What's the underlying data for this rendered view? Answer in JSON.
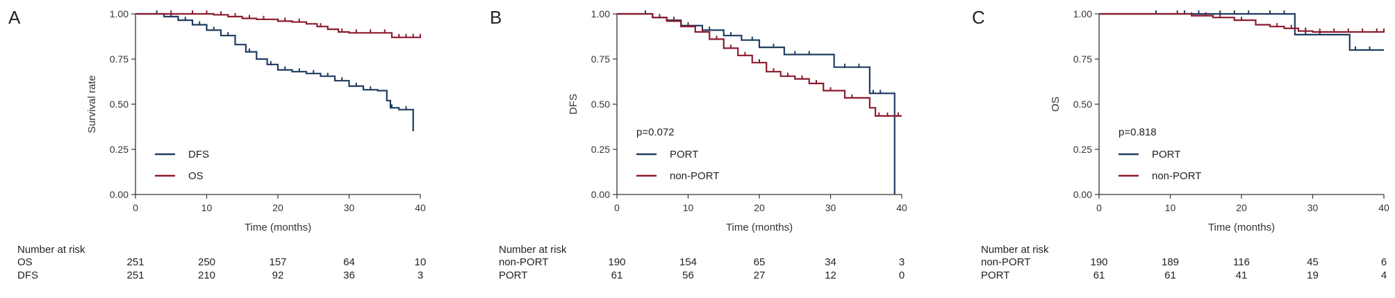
{
  "colors": {
    "blue": "#1f3b5f",
    "red": "#8b1a2e",
    "axis": "#333333"
  },
  "chart_data": [
    {
      "type": "line",
      "subtype": "kaplan-meier",
      "panel_label": "A",
      "xlabel": "Time (months)",
      "ylabel": "Survival rate",
      "xlim": [
        0,
        40
      ],
      "ylim": [
        0,
        1
      ],
      "xticks": [
        "0",
        "10",
        "20",
        "30",
        "40"
      ],
      "yticks": [
        "0.00",
        "0.25",
        "0.50",
        "0.75",
        "1.00"
      ],
      "p_value": "",
      "legend_position": "lower-left",
      "series": [
        {
          "name": "DFS",
          "color": "#1f3b5f",
          "x": [
            0,
            2.5,
            4,
            6,
            8,
            10,
            12,
            14,
            15.5,
            17,
            18.5,
            20,
            22,
            24,
            26,
            28,
            30,
            32,
            34,
            35.3,
            35.8,
            37,
            38.6,
            39
          ],
          "y": [
            1.0,
            1.0,
            0.985,
            0.965,
            0.94,
            0.91,
            0.88,
            0.83,
            0.79,
            0.75,
            0.72,
            0.69,
            0.68,
            0.67,
            0.655,
            0.63,
            0.6,
            0.58,
            0.575,
            0.52,
            0.48,
            0.47,
            0.47,
            0.35
          ],
          "censor": [
            3,
            5,
            7,
            9,
            11,
            13,
            16,
            19,
            21,
            23,
            25,
            27,
            29,
            31,
            33,
            36,
            38
          ]
        },
        {
          "name": "OS",
          "color": "#8b1a2e",
          "x": [
            0,
            9,
            11,
            13,
            15,
            17,
            20,
            22,
            24,
            25.5,
            27,
            28.5,
            30,
            32,
            35.5,
            36,
            40
          ],
          "y": [
            1.0,
            1.0,
            0.995,
            0.985,
            0.975,
            0.97,
            0.96,
            0.955,
            0.945,
            0.93,
            0.915,
            0.9,
            0.895,
            0.895,
            0.895,
            0.87,
            0.87
          ],
          "censor": [
            5,
            8,
            10,
            12,
            14,
            16,
            18,
            21,
            23,
            26,
            29,
            31,
            33,
            35,
            37,
            38,
            39,
            40
          ]
        }
      ],
      "risk_table": {
        "title": "Number at risk",
        "times": [
          "0",
          "10",
          "20",
          "30",
          "40"
        ],
        "rows": [
          {
            "label": "OS",
            "values": [
              "251",
              "250",
              "157",
              "64",
              "10"
            ]
          },
          {
            "label": "DFS",
            "values": [
              "251",
              "210",
              "92",
              "36",
              "3"
            ]
          }
        ]
      }
    },
    {
      "type": "line",
      "subtype": "kaplan-meier",
      "panel_label": "B",
      "xlabel": "Time (months)",
      "ylabel": "DFS",
      "xlim": [
        0,
        40
      ],
      "ylim": [
        0,
        1
      ],
      "xticks": [
        "0",
        "10",
        "20",
        "30",
        "40"
      ],
      "yticks": [
        "0.00",
        "0.25",
        "0.50",
        "0.75",
        "1.00"
      ],
      "p_value": "p=0.072",
      "legend_position": "lower-left",
      "series": [
        {
          "name": "PORT",
          "color": "#1f3b5f",
          "x": [
            0,
            3,
            5,
            7,
            9,
            12,
            15,
            17.5,
            20,
            23.5,
            30.5,
            35.5,
            39
          ],
          "y": [
            1.0,
            1.0,
            0.98,
            0.965,
            0.935,
            0.91,
            0.88,
            0.855,
            0.815,
            0.775,
            0.705,
            0.56,
            0.0
          ],
          "censor": [
            4,
            8,
            10,
            13,
            16,
            19,
            22,
            25,
            27,
            32,
            34,
            36,
            37
          ]
        },
        {
          "name": "non-PORT",
          "color": "#8b1a2e",
          "x": [
            0,
            3,
            5,
            7,
            9,
            11,
            13,
            15,
            17,
            19,
            21,
            23,
            25,
            27,
            29,
            32,
            35.5,
            36.3,
            40
          ],
          "y": [
            1.0,
            1.0,
            0.98,
            0.96,
            0.93,
            0.9,
            0.86,
            0.81,
            0.77,
            0.73,
            0.68,
            0.655,
            0.64,
            0.615,
            0.575,
            0.535,
            0.48,
            0.435,
            0.435
          ],
          "censor": [
            6,
            8,
            10,
            12,
            14,
            16,
            18,
            20,
            22,
            24,
            26,
            28,
            30,
            33,
            36.8,
            38,
            39.5
          ]
        }
      ],
      "risk_table": {
        "title": "Number at risk",
        "times": [
          "0",
          "10",
          "20",
          "30",
          "40"
        ],
        "rows": [
          {
            "label": "non-PORT",
            "values": [
              "190",
              "154",
              "65",
              "34",
              "3"
            ]
          },
          {
            "label": "PORT",
            "values": [
              "61",
              "56",
              "27",
              "12",
              "0"
            ]
          }
        ]
      }
    },
    {
      "type": "line",
      "subtype": "kaplan-meier",
      "panel_label": "C",
      "xlabel": "Time (months)",
      "ylabel": "OS",
      "xlim": [
        0,
        40
      ],
      "ylim": [
        0,
        1
      ],
      "xticks": [
        "0",
        "10",
        "20",
        "30",
        "40"
      ],
      "yticks": [
        "0.00",
        "0.25",
        "0.50",
        "0.75",
        "1.00"
      ],
      "p_value": "p=0.818",
      "legend_position": "lower-left",
      "series": [
        {
          "name": "PORT",
          "color": "#1f3b5f",
          "x": [
            0,
            25.5,
            27.5,
            35.2,
            40
          ],
          "y": [
            1.0,
            1.0,
            0.885,
            0.8,
            0.8
          ],
          "censor": [
            8,
            12,
            14,
            17,
            19,
            21,
            24,
            26,
            29,
            31,
            36,
            38
          ]
        },
        {
          "name": "non-PORT",
          "color": "#8b1a2e",
          "x": [
            0,
            10,
            13,
            16,
            19,
            22,
            24,
            26,
            28,
            30,
            34,
            40
          ],
          "y": [
            1.0,
            1.0,
            0.99,
            0.98,
            0.965,
            0.94,
            0.93,
            0.92,
            0.905,
            0.9,
            0.9,
            0.9
          ],
          "censor": [
            11,
            13,
            15,
            17,
            20,
            22,
            25,
            27,
            29,
            31,
            33,
            35,
            37,
            39,
            40
          ]
        }
      ],
      "risk_table": {
        "title": "Number at risk",
        "times": [
          "0",
          "10",
          "20",
          "30",
          "40"
        ],
        "rows": [
          {
            "label": "non-PORT",
            "values": [
              "190",
              "189",
              "116",
              "45",
              "6"
            ]
          },
          {
            "label": "PORT",
            "values": [
              "61",
              "61",
              "41",
              "19",
              "4"
            ]
          }
        ]
      }
    }
  ]
}
